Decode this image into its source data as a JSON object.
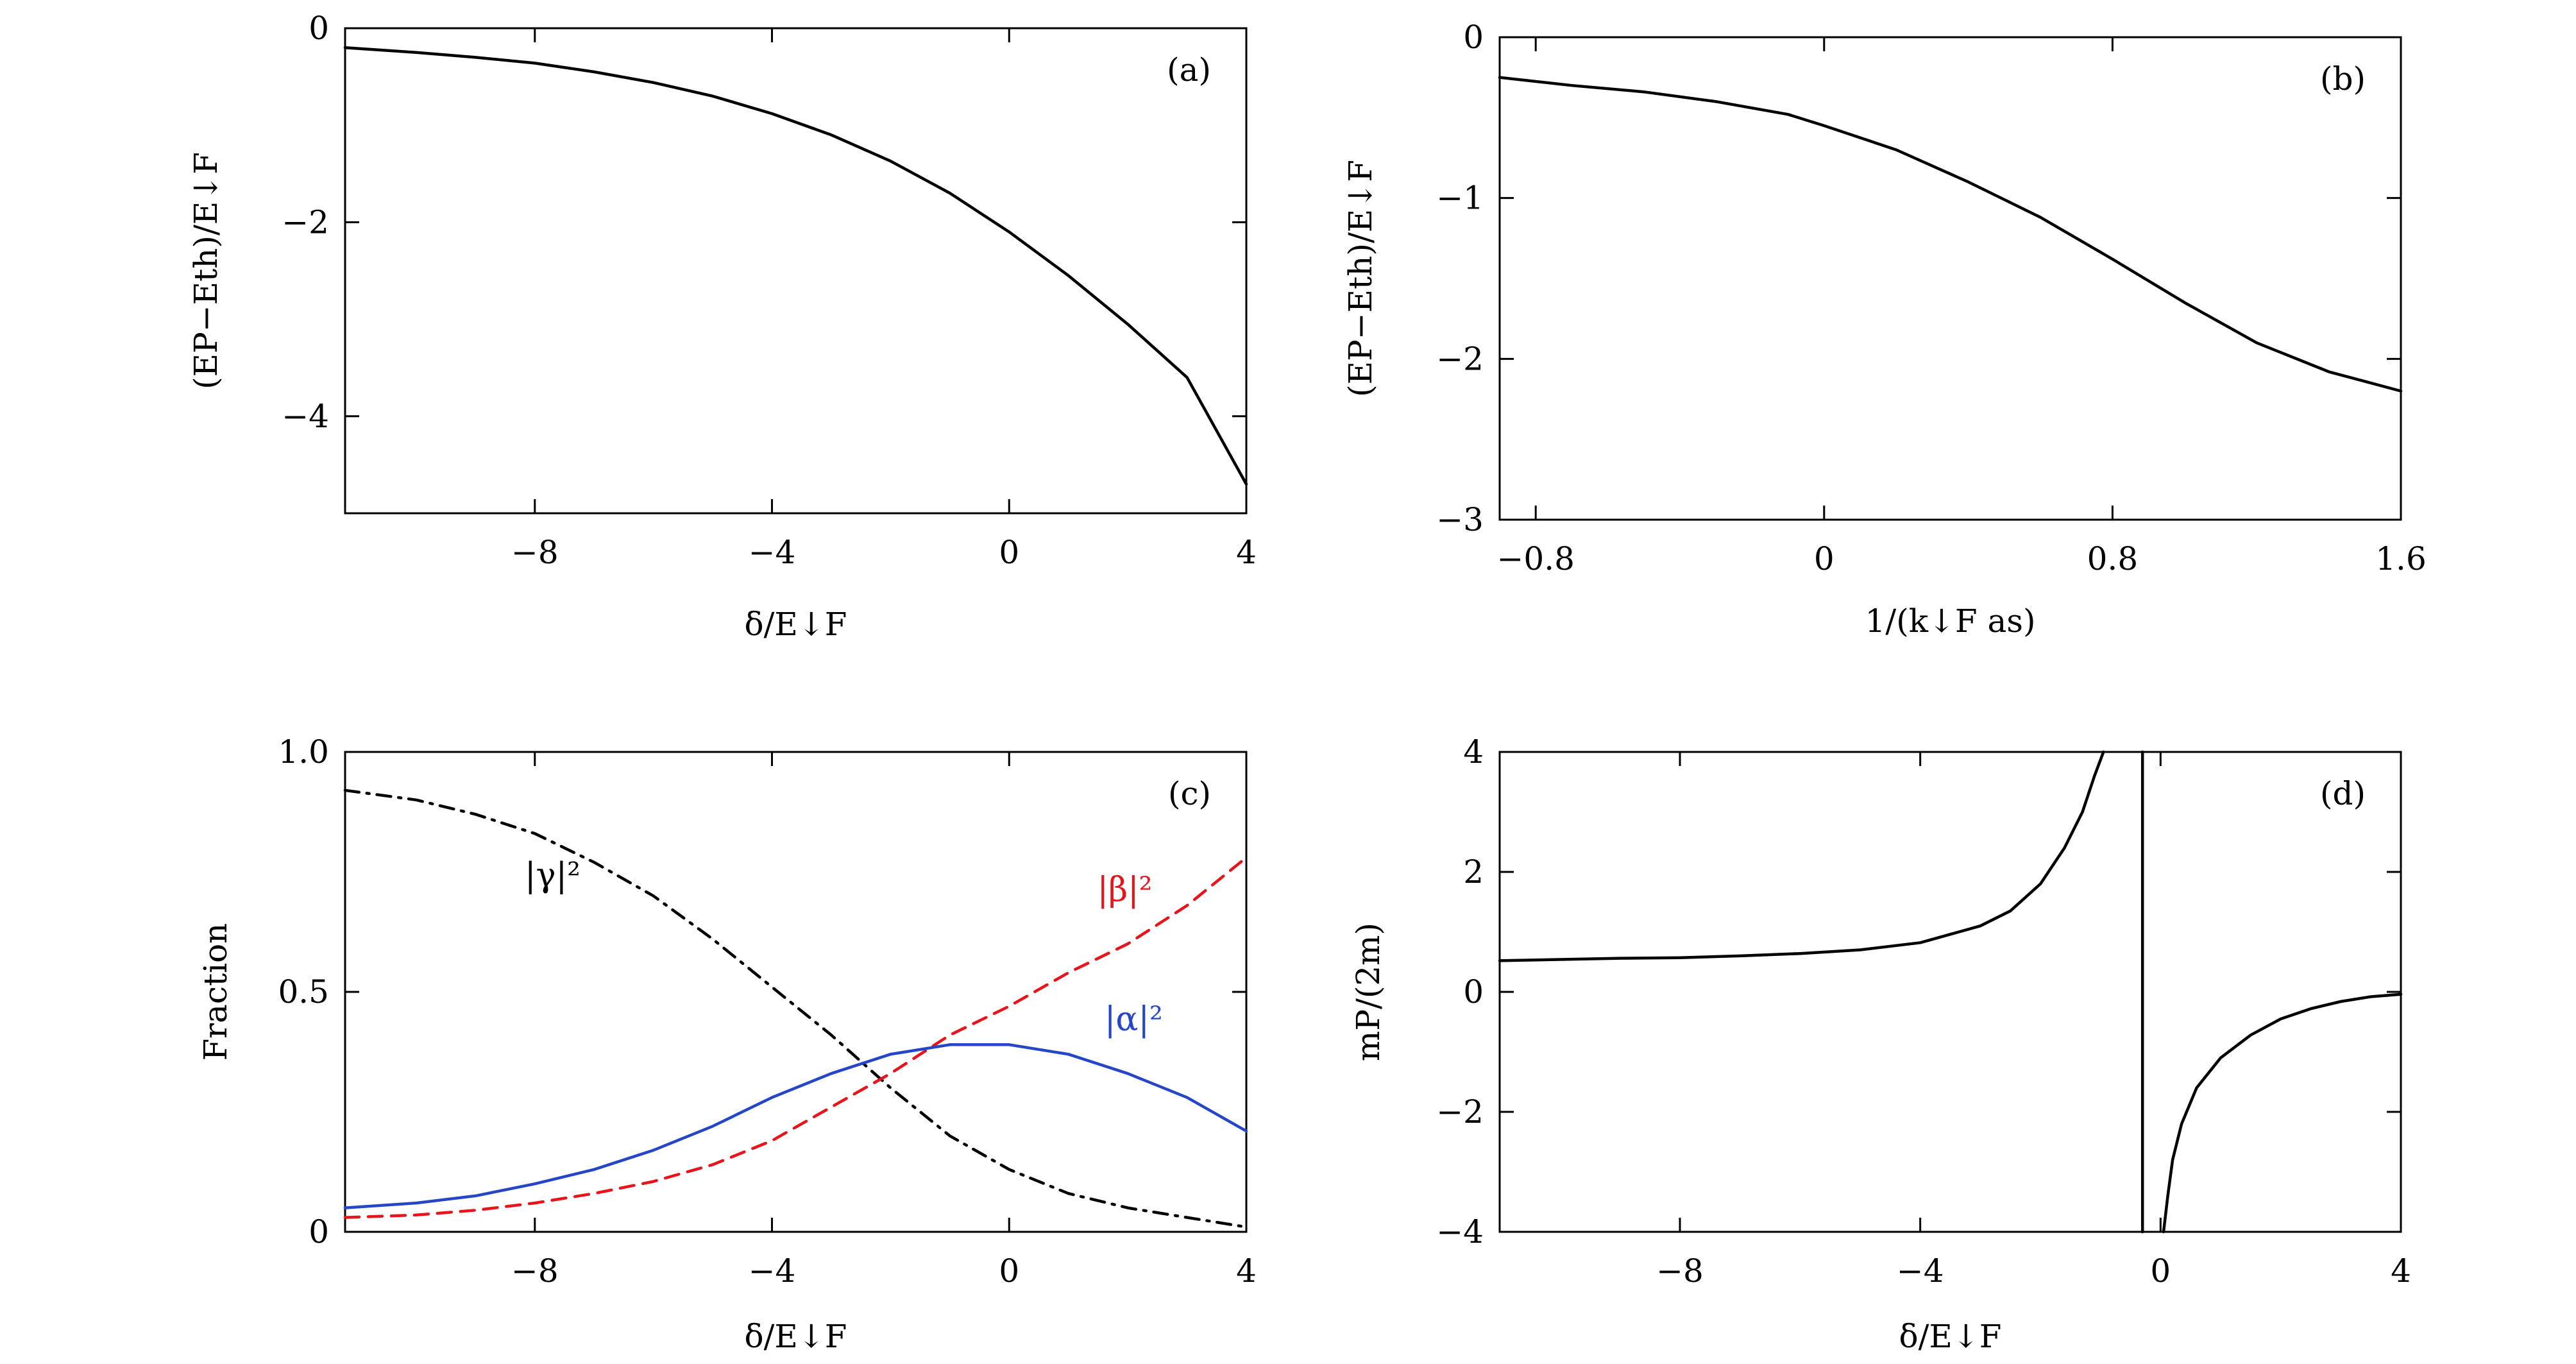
{
  "chart_data": [
    {
      "panel": "(a)",
      "type": "line",
      "xlabel": "δ/E↓F",
      "ylabel": "(EP−Eth)/E↓F",
      "xlim": [
        -11.2,
        4
      ],
      "ylim": [
        -5,
        0
      ],
      "xticks": [
        -8,
        -4,
        0,
        4
      ],
      "yticks": [
        0,
        -2,
        -4
      ],
      "grid": false,
      "series": [
        {
          "color": "#000000",
          "dash": "solid",
          "x": [
            -11.2,
            -10,
            -9,
            -8,
            -7,
            -6,
            -5,
            -4,
            -3,
            -2,
            -1,
            0,
            1,
            2,
            3,
            4
          ],
          "y": [
            -0.2,
            -0.25,
            -0.3,
            -0.36,
            -0.45,
            -0.56,
            -0.7,
            -0.88,
            -1.1,
            -1.37,
            -1.7,
            -2.1,
            -2.55,
            -3.05,
            -3.6,
            -4.7
          ]
        }
      ]
    },
    {
      "panel": "(b)",
      "type": "line",
      "xlabel": "1/(k↓F as)",
      "ylabel": "(EP−Eth)/E↓F",
      "xlim": [
        -0.9,
        1.6
      ],
      "ylim": [
        -3,
        0
      ],
      "xticks": [
        -0.8,
        0,
        0.8,
        1.6
      ],
      "yticks": [
        0,
        -1,
        -2,
        -3
      ],
      "grid": false,
      "series": [
        {
          "color": "#000000",
          "dash": "solid",
          "x": [
            -0.9,
            -0.7,
            -0.5,
            -0.3,
            -0.1,
            0,
            0.2,
            0.4,
            0.6,
            0.8,
            1.0,
            1.2,
            1.4,
            1.5,
            1.6
          ],
          "y": [
            -0.25,
            -0.3,
            -0.34,
            -0.4,
            -0.48,
            -0.55,
            -0.7,
            -0.9,
            -1.12,
            -1.38,
            -1.65,
            -1.9,
            -2.08,
            -2.14,
            -2.2
          ]
        }
      ]
    },
    {
      "panel": "(c)",
      "type": "line",
      "xlabel": "δ/E↓F",
      "ylabel": "Fraction",
      "xlim": [
        -11.2,
        4
      ],
      "ylim": [
        0,
        1
      ],
      "xticks": [
        -8,
        -4,
        0,
        4
      ],
      "yticks": [
        0,
        0.5,
        1.0
      ],
      "grid": false,
      "series": [
        {
          "name": "|γ|²",
          "color": "#000000",
          "dash": "dashdot",
          "x": [
            -11.2,
            -10,
            -9,
            -8,
            -7,
            -6,
            -5,
            -4,
            -3,
            -2,
            -1,
            0,
            1,
            2,
            3,
            4
          ],
          "y": [
            0.92,
            0.9,
            0.87,
            0.83,
            0.77,
            0.7,
            0.61,
            0.51,
            0.41,
            0.3,
            0.2,
            0.13,
            0.08,
            0.05,
            0.03,
            0.01
          ]
        },
        {
          "name": "|β|²",
          "color": "#e8141b",
          "dash": "dashed",
          "x": [
            -11.2,
            -10,
            -9,
            -8,
            -7,
            -6,
            -5,
            -4,
            -3,
            -2,
            -1,
            0,
            1,
            2,
            3,
            4
          ],
          "y": [
            0.03,
            0.035,
            0.045,
            0.06,
            0.08,
            0.105,
            0.14,
            0.19,
            0.26,
            0.33,
            0.41,
            0.47,
            0.54,
            0.6,
            0.68,
            0.78
          ]
        },
        {
          "name": "|α|²",
          "color": "#2646c8",
          "dash": "solid",
          "x": [
            -11.2,
            -10,
            -9,
            -8,
            -7,
            -6,
            -5,
            -4,
            -3,
            -2,
            -1,
            0,
            1,
            2,
            3,
            4
          ],
          "y": [
            0.05,
            0.06,
            0.075,
            0.1,
            0.13,
            0.17,
            0.22,
            0.28,
            0.33,
            0.37,
            0.39,
            0.39,
            0.37,
            0.33,
            0.28,
            0.21
          ]
        }
      ],
      "annotations": [
        {
          "text": "|γ|²",
          "x": -7.7,
          "y": 0.72,
          "color": "#000000"
        },
        {
          "text": "|β|²",
          "x": 1.95,
          "y": 0.69,
          "color": "#e8141b"
        },
        {
          "text": "|α|²",
          "x": 2.1,
          "y": 0.42,
          "color": "#2646c8"
        }
      ]
    },
    {
      "panel": "(d)",
      "type": "line",
      "xlabel": "δ/E↓F",
      "ylabel": "mP/(2m)",
      "xlim": [
        -11,
        4
      ],
      "ylim": [
        -4,
        4
      ],
      "xticks": [
        -8,
        -4,
        0,
        4
      ],
      "yticks": [
        4,
        2,
        0,
        -2,
        -4
      ],
      "grid": false,
      "series": [
        {
          "color": "#000000",
          "dash": "solid",
          "x": [
            -11,
            -10,
            -9,
            -8,
            -7,
            -6,
            -5,
            -4,
            -3,
            -2.5,
            -2,
            -1.6,
            -1.3,
            -1.1,
            -0.95
          ],
          "y": [
            0.52,
            0.54,
            0.56,
            0.57,
            0.6,
            0.64,
            0.7,
            0.82,
            1.1,
            1.35,
            1.8,
            2.4,
            3.0,
            3.6,
            4.0
          ]
        },
        {
          "color": "#000000",
          "dash": "solid",
          "x": [
            -0.3,
            -0.3
          ],
          "y": [
            4,
            -4
          ]
        },
        {
          "color": "#000000",
          "dash": "solid",
          "x": [
            0.05,
            0.12,
            0.2,
            0.35,
            0.6,
            1.0,
            1.5,
            2.0,
            2.5,
            3.0,
            3.5,
            4.0
          ],
          "y": [
            -4.0,
            -3.4,
            -2.8,
            -2.2,
            -1.6,
            -1.1,
            -0.72,
            -0.45,
            -0.28,
            -0.16,
            -0.08,
            -0.04
          ]
        }
      ]
    }
  ]
}
